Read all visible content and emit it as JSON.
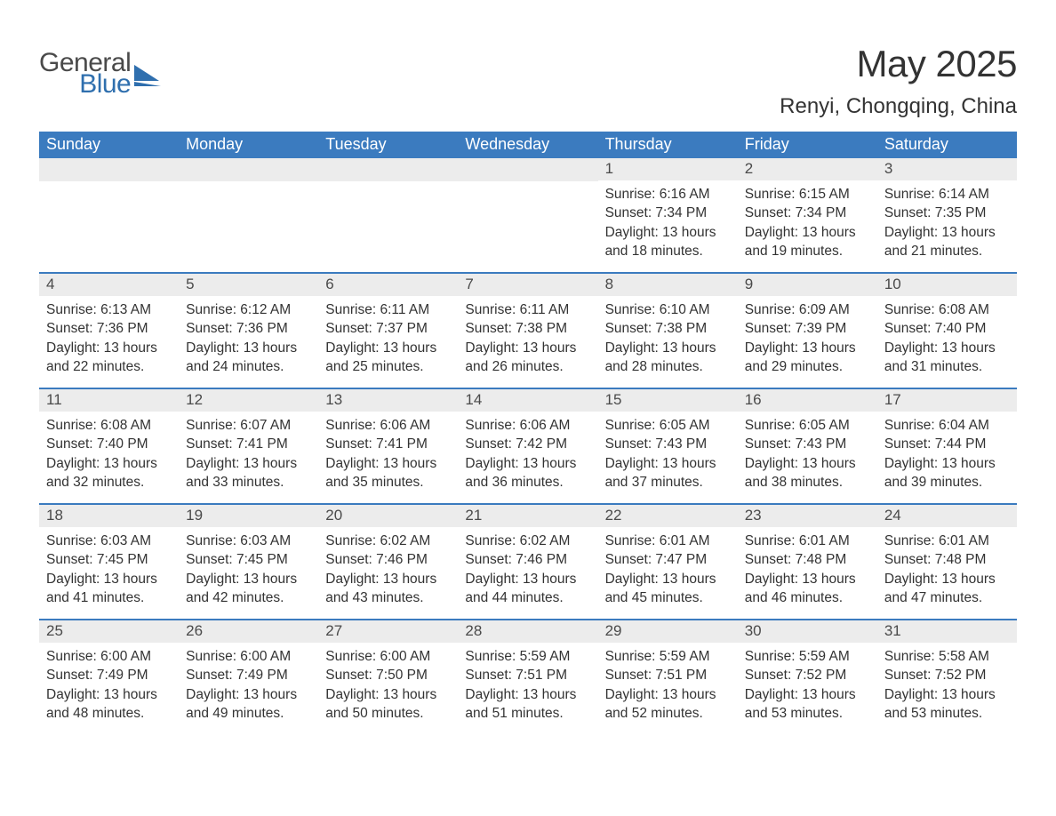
{
  "logo": {
    "word1": "General",
    "word2": "Blue",
    "text_color_general": "#4a4a4a",
    "text_color_blue": "#2f6fae",
    "shape_color": "#2f6fae"
  },
  "title": "May 2025",
  "location": "Renyi, Chongqing, China",
  "colors": {
    "header_bg": "#3b7bbf",
    "header_text": "#ffffff",
    "daynum_bg": "#ececec",
    "border": "#3b7bbf",
    "body_bg": "#ffffff",
    "text": "#333333"
  },
  "typography": {
    "title_fontsize": 42,
    "location_fontsize": 24,
    "weekday_fontsize": 18,
    "daynum_fontsize": 17,
    "body_fontsize": 15.5,
    "font_family": "Arial"
  },
  "weekdays": [
    "Sunday",
    "Monday",
    "Tuesday",
    "Wednesday",
    "Thursday",
    "Friday",
    "Saturday"
  ],
  "weeks": [
    [
      {
        "day": "",
        "sunrise": "",
        "sunset": "",
        "daylight": ""
      },
      {
        "day": "",
        "sunrise": "",
        "sunset": "",
        "daylight": ""
      },
      {
        "day": "",
        "sunrise": "",
        "sunset": "",
        "daylight": ""
      },
      {
        "day": "",
        "sunrise": "",
        "sunset": "",
        "daylight": ""
      },
      {
        "day": "1",
        "sunrise": "Sunrise: 6:16 AM",
        "sunset": "Sunset: 7:34 PM",
        "daylight": "Daylight: 13 hours and 18 minutes."
      },
      {
        "day": "2",
        "sunrise": "Sunrise: 6:15 AM",
        "sunset": "Sunset: 7:34 PM",
        "daylight": "Daylight: 13 hours and 19 minutes."
      },
      {
        "day": "3",
        "sunrise": "Sunrise: 6:14 AM",
        "sunset": "Sunset: 7:35 PM",
        "daylight": "Daylight: 13 hours and 21 minutes."
      }
    ],
    [
      {
        "day": "4",
        "sunrise": "Sunrise: 6:13 AM",
        "sunset": "Sunset: 7:36 PM",
        "daylight": "Daylight: 13 hours and 22 minutes."
      },
      {
        "day": "5",
        "sunrise": "Sunrise: 6:12 AM",
        "sunset": "Sunset: 7:36 PM",
        "daylight": "Daylight: 13 hours and 24 minutes."
      },
      {
        "day": "6",
        "sunrise": "Sunrise: 6:11 AM",
        "sunset": "Sunset: 7:37 PM",
        "daylight": "Daylight: 13 hours and 25 minutes."
      },
      {
        "day": "7",
        "sunrise": "Sunrise: 6:11 AM",
        "sunset": "Sunset: 7:38 PM",
        "daylight": "Daylight: 13 hours and 26 minutes."
      },
      {
        "day": "8",
        "sunrise": "Sunrise: 6:10 AM",
        "sunset": "Sunset: 7:38 PM",
        "daylight": "Daylight: 13 hours and 28 minutes."
      },
      {
        "day": "9",
        "sunrise": "Sunrise: 6:09 AM",
        "sunset": "Sunset: 7:39 PM",
        "daylight": "Daylight: 13 hours and 29 minutes."
      },
      {
        "day": "10",
        "sunrise": "Sunrise: 6:08 AM",
        "sunset": "Sunset: 7:40 PM",
        "daylight": "Daylight: 13 hours and 31 minutes."
      }
    ],
    [
      {
        "day": "11",
        "sunrise": "Sunrise: 6:08 AM",
        "sunset": "Sunset: 7:40 PM",
        "daylight": "Daylight: 13 hours and 32 minutes."
      },
      {
        "day": "12",
        "sunrise": "Sunrise: 6:07 AM",
        "sunset": "Sunset: 7:41 PM",
        "daylight": "Daylight: 13 hours and 33 minutes."
      },
      {
        "day": "13",
        "sunrise": "Sunrise: 6:06 AM",
        "sunset": "Sunset: 7:41 PM",
        "daylight": "Daylight: 13 hours and 35 minutes."
      },
      {
        "day": "14",
        "sunrise": "Sunrise: 6:06 AM",
        "sunset": "Sunset: 7:42 PM",
        "daylight": "Daylight: 13 hours and 36 minutes."
      },
      {
        "day": "15",
        "sunrise": "Sunrise: 6:05 AM",
        "sunset": "Sunset: 7:43 PM",
        "daylight": "Daylight: 13 hours and 37 minutes."
      },
      {
        "day": "16",
        "sunrise": "Sunrise: 6:05 AM",
        "sunset": "Sunset: 7:43 PM",
        "daylight": "Daylight: 13 hours and 38 minutes."
      },
      {
        "day": "17",
        "sunrise": "Sunrise: 6:04 AM",
        "sunset": "Sunset: 7:44 PM",
        "daylight": "Daylight: 13 hours and 39 minutes."
      }
    ],
    [
      {
        "day": "18",
        "sunrise": "Sunrise: 6:03 AM",
        "sunset": "Sunset: 7:45 PM",
        "daylight": "Daylight: 13 hours and 41 minutes."
      },
      {
        "day": "19",
        "sunrise": "Sunrise: 6:03 AM",
        "sunset": "Sunset: 7:45 PM",
        "daylight": "Daylight: 13 hours and 42 minutes."
      },
      {
        "day": "20",
        "sunrise": "Sunrise: 6:02 AM",
        "sunset": "Sunset: 7:46 PM",
        "daylight": "Daylight: 13 hours and 43 minutes."
      },
      {
        "day": "21",
        "sunrise": "Sunrise: 6:02 AM",
        "sunset": "Sunset: 7:46 PM",
        "daylight": "Daylight: 13 hours and 44 minutes."
      },
      {
        "day": "22",
        "sunrise": "Sunrise: 6:01 AM",
        "sunset": "Sunset: 7:47 PM",
        "daylight": "Daylight: 13 hours and 45 minutes."
      },
      {
        "day": "23",
        "sunrise": "Sunrise: 6:01 AM",
        "sunset": "Sunset: 7:48 PM",
        "daylight": "Daylight: 13 hours and 46 minutes."
      },
      {
        "day": "24",
        "sunrise": "Sunrise: 6:01 AM",
        "sunset": "Sunset: 7:48 PM",
        "daylight": "Daylight: 13 hours and 47 minutes."
      }
    ],
    [
      {
        "day": "25",
        "sunrise": "Sunrise: 6:00 AM",
        "sunset": "Sunset: 7:49 PM",
        "daylight": "Daylight: 13 hours and 48 minutes."
      },
      {
        "day": "26",
        "sunrise": "Sunrise: 6:00 AM",
        "sunset": "Sunset: 7:49 PM",
        "daylight": "Daylight: 13 hours and 49 minutes."
      },
      {
        "day": "27",
        "sunrise": "Sunrise: 6:00 AM",
        "sunset": "Sunset: 7:50 PM",
        "daylight": "Daylight: 13 hours and 50 minutes."
      },
      {
        "day": "28",
        "sunrise": "Sunrise: 5:59 AM",
        "sunset": "Sunset: 7:51 PM",
        "daylight": "Daylight: 13 hours and 51 minutes."
      },
      {
        "day": "29",
        "sunrise": "Sunrise: 5:59 AM",
        "sunset": "Sunset: 7:51 PM",
        "daylight": "Daylight: 13 hours and 52 minutes."
      },
      {
        "day": "30",
        "sunrise": "Sunrise: 5:59 AM",
        "sunset": "Sunset: 7:52 PM",
        "daylight": "Daylight: 13 hours and 53 minutes."
      },
      {
        "day": "31",
        "sunrise": "Sunrise: 5:58 AM",
        "sunset": "Sunset: 7:52 PM",
        "daylight": "Daylight: 13 hours and 53 minutes."
      }
    ]
  ]
}
